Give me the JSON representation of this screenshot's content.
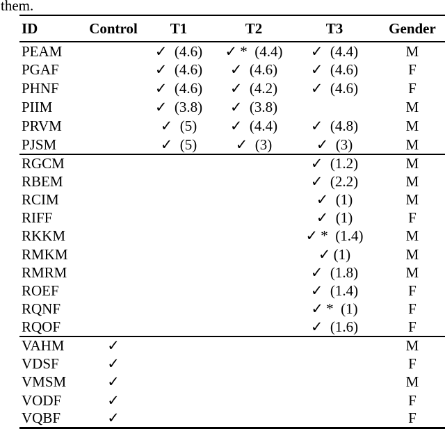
{
  "page": {
    "intro_text": "them."
  },
  "table": {
    "check_symbol": "✓",
    "columns": [
      {
        "key": "id",
        "label": "ID"
      },
      {
        "key": "control",
        "label": "Control"
      },
      {
        "key": "t1",
        "label": "T1"
      },
      {
        "key": "t2",
        "label": "T2"
      },
      {
        "key": "t3",
        "label": "T3"
      },
      {
        "key": "gender",
        "label": "Gender"
      }
    ],
    "groups": [
      {
        "rows": [
          {
            "id": "PEAM",
            "control": null,
            "t1": {
              "check": true,
              "star": false,
              "value": "4.6"
            },
            "t2": {
              "check": true,
              "star": true,
              "value": "4.4"
            },
            "t3": {
              "check": true,
              "star": false,
              "value": "4.4"
            },
            "gender": "M"
          },
          {
            "id": "PGAF",
            "control": null,
            "t1": {
              "check": true,
              "star": false,
              "value": "4.6"
            },
            "t2": {
              "check": true,
              "star": false,
              "value": "4.6"
            },
            "t3": {
              "check": true,
              "star": false,
              "value": "4.6"
            },
            "gender": "F"
          },
          {
            "id": "PHNF",
            "control": null,
            "t1": {
              "check": true,
              "star": false,
              "value": "4.6"
            },
            "t2": {
              "check": true,
              "star": false,
              "value": "4.2"
            },
            "t3": {
              "check": true,
              "star": false,
              "value": "4.6"
            },
            "gender": "F"
          },
          {
            "id": "PIIM",
            "control": null,
            "t1": {
              "check": true,
              "star": false,
              "value": "3.8"
            },
            "t2": {
              "check": true,
              "star": false,
              "value": "3.8"
            },
            "t3": null,
            "gender": "M"
          },
          {
            "id": "PRVM",
            "control": null,
            "t1": {
              "check": true,
              "star": false,
              "value": "5"
            },
            "t2": {
              "check": true,
              "star": false,
              "value": "4.4"
            },
            "t3": {
              "check": true,
              "star": false,
              "value": "4.8"
            },
            "gender": "M"
          },
          {
            "id": "PJSM",
            "control": null,
            "t1": {
              "check": true,
              "star": false,
              "value": "5"
            },
            "t2": {
              "check": true,
              "star": false,
              "value": "3"
            },
            "t3": {
              "check": true,
              "star": false,
              "value": "3"
            },
            "gender": "M"
          }
        ]
      },
      {
        "rows": [
          {
            "id": "RGCM",
            "control": null,
            "t1": null,
            "t2": null,
            "t3": {
              "check": true,
              "star": false,
              "value": "1.2"
            },
            "gender": "M"
          },
          {
            "id": "RBEM",
            "control": null,
            "t1": null,
            "t2": null,
            "t3": {
              "check": true,
              "star": false,
              "value": "2.2"
            },
            "gender": "M"
          },
          {
            "id": "RCIM",
            "control": null,
            "t1": null,
            "t2": null,
            "t3": {
              "check": true,
              "star": false,
              "value": "1"
            },
            "gender": "M"
          },
          {
            "id": "RIFF",
            "control": null,
            "t1": null,
            "t2": null,
            "t3": {
              "check": true,
              "star": false,
              "value": "1"
            },
            "gender": "F"
          },
          {
            "id": "RKKM",
            "control": null,
            "t1": null,
            "t2": null,
            "t3": {
              "check": true,
              "star": true,
              "value": "1.4"
            },
            "gender": "M"
          },
          {
            "id": "RMKM",
            "control": null,
            "t1": null,
            "t2": null,
            "t3": {
              "check": true,
              "star": false,
              "value": "1",
              "tight": true
            },
            "gender": "M"
          },
          {
            "id": "RMRM",
            "control": null,
            "t1": null,
            "t2": null,
            "t3": {
              "check": true,
              "star": false,
              "value": "1.8"
            },
            "gender": "M"
          },
          {
            "id": "ROEF",
            "control": null,
            "t1": null,
            "t2": null,
            "t3": {
              "check": true,
              "star": false,
              "value": "1.4"
            },
            "gender": "F"
          },
          {
            "id": "RQNF",
            "control": null,
            "t1": null,
            "t2": null,
            "t3": {
              "check": true,
              "star": true,
              "value": "1"
            },
            "gender": "F"
          },
          {
            "id": "RQOF",
            "control": null,
            "t1": null,
            "t2": null,
            "t3": {
              "check": true,
              "star": false,
              "value": "1.6"
            },
            "gender": "F"
          }
        ]
      },
      {
        "rows": [
          {
            "id": "VAHM",
            "control": {
              "check": true,
              "star": false,
              "value": null
            },
            "t1": null,
            "t2": null,
            "t3": null,
            "gender": "M"
          },
          {
            "id": "VDSF",
            "control": {
              "check": true,
              "star": false,
              "value": null
            },
            "t1": null,
            "t2": null,
            "t3": null,
            "gender": "F"
          },
          {
            "id": "VMSM",
            "control": {
              "check": true,
              "star": false,
              "value": null
            },
            "t1": null,
            "t2": null,
            "t3": null,
            "gender": "M"
          },
          {
            "id": "VODF",
            "control": {
              "check": true,
              "star": false,
              "value": null
            },
            "t1": null,
            "t2": null,
            "t3": null,
            "gender": "F"
          },
          {
            "id": "VQBF",
            "control": {
              "check": true,
              "star": false,
              "value": null
            },
            "t1": null,
            "t2": null,
            "t3": null,
            "gender": "F"
          }
        ]
      }
    ]
  }
}
